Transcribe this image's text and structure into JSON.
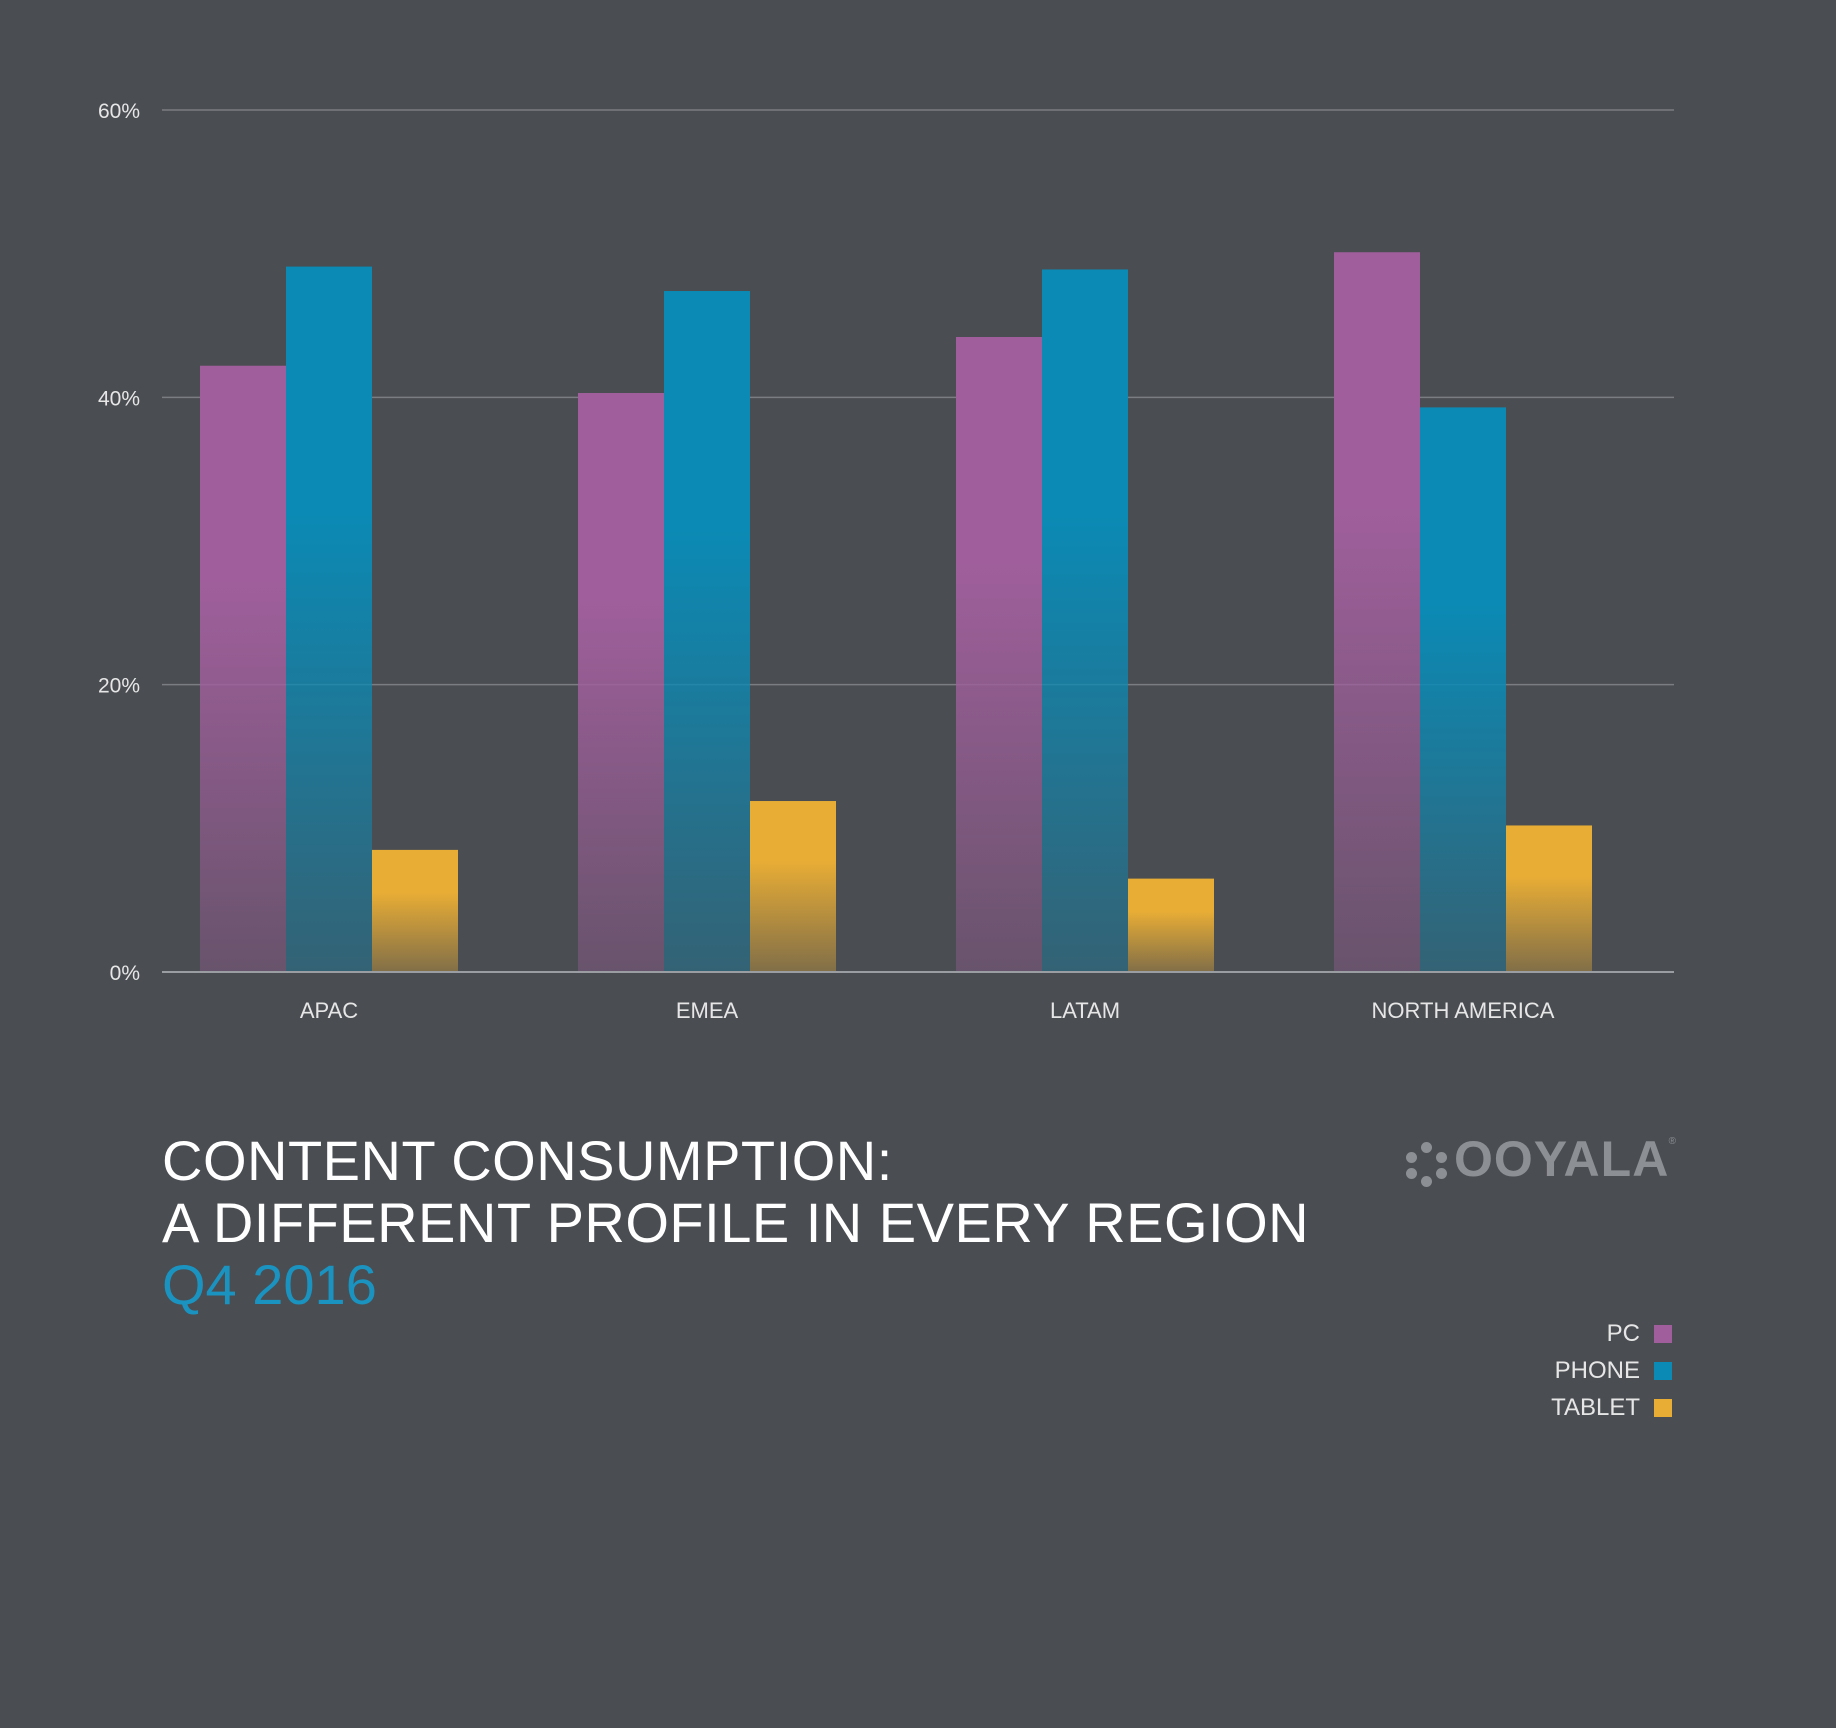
{
  "chart_data": {
    "type": "bar",
    "title": "CONTENT CONSUMPTION:\nA DIFFERENT PROFILE IN EVERY REGION",
    "subtitle": "Q4 2016",
    "categories": [
      "APAC",
      "EMEA",
      "LATAM",
      "NORTH AMERICA"
    ],
    "series": [
      {
        "name": "PC",
        "color": "#a05f9c",
        "values": [
          42.2,
          40.3,
          44.2,
          50.1
        ]
      },
      {
        "name": "PHONE",
        "color": "#0b8ab5",
        "values": [
          49.1,
          47.4,
          48.9,
          39.3
        ]
      },
      {
        "name": "TABLET",
        "color": "#e8ad35",
        "values": [
          8.5,
          11.9,
          6.5,
          10.2
        ]
      }
    ],
    "ylim": [
      0,
      60
    ],
    "yticks": [
      "0%",
      "20%",
      "40%",
      "60%"
    ],
    "ytick_values": [
      0,
      20,
      40,
      60
    ],
    "grid": true,
    "legend_position": "bottom-right",
    "xlabel": "",
    "ylabel": ""
  },
  "title": {
    "line1": "CONTENT CONSUMPTION:",
    "line2": "A DIFFERENT PROFILE IN EVERY REGION",
    "subtitle": "Q4 2016"
  },
  "logo": {
    "text": "OOYALA",
    "registered": "®"
  },
  "legend": {
    "items": [
      {
        "label": "PC",
        "color": "#a05f9c"
      },
      {
        "label": "PHONE",
        "color": "#0b8ab5"
      },
      {
        "label": "TABLET",
        "color": "#e8ad35"
      }
    ]
  }
}
